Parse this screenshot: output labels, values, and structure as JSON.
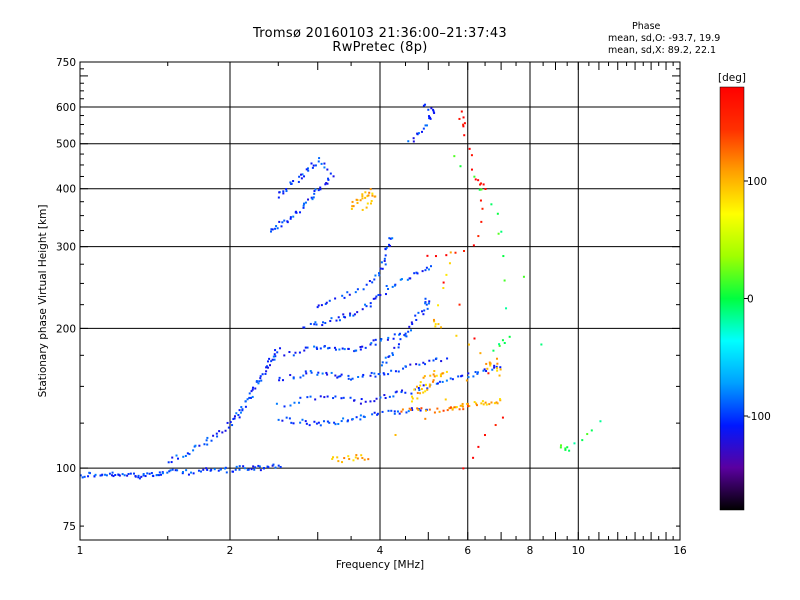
{
  "chart_data": {
    "type": "scatter",
    "title": "Tromsø 20160103 21:36:00–21:37:43",
    "subtitle": "RwPretec (8p)",
    "xlabel": "Frequency [MHz]",
    "ylabel": "Stationary phase Virtual Height [km]",
    "x_scale": "log",
    "y_scale": "log",
    "xlim": [
      1,
      16
    ],
    "ylim": [
      70,
      750
    ],
    "x_ticks": [
      1,
      2,
      4,
      6,
      8,
      10,
      16
    ],
    "y_ticks": [
      75,
      100,
      200,
      300,
      400,
      500,
      600,
      750
    ],
    "grid": true,
    "stats": {
      "title": "Phase",
      "o_line": "mean, sd,O:  -93.7, 19.9",
      "x_line": "mean, sd,X:  89.2, 22.1"
    },
    "colorbar": {
      "label": "[deg]",
      "range": [
        -180,
        180
      ],
      "ticks": [
        100,
        0,
        -100
      ],
      "colors": [
        "#000000",
        "#5a00a0",
        "#0018ff",
        "#00a0ff",
        "#00ffff",
        "#00ff40",
        "#a0ff00",
        "#ffff00",
        "#ffa000",
        "#ff3000",
        "#ff0000"
      ]
    },
    "series": [
      {
        "phase": -100,
        "points": [
          [
            1.0,
            96
          ],
          [
            1.05,
            97
          ],
          [
            1.1,
            96
          ],
          [
            1.15,
            97
          ],
          [
            1.2,
            96
          ],
          [
            1.25,
            97
          ],
          [
            1.3,
            96
          ],
          [
            1.35,
            97
          ],
          [
            1.4,
            97
          ],
          [
            1.45,
            97
          ],
          [
            1.5,
            98
          ],
          [
            1.6,
            98
          ],
          [
            1.7,
            98
          ],
          [
            1.8,
            99
          ],
          [
            1.9,
            99
          ],
          [
            2.0,
            99
          ],
          [
            2.1,
            100
          ],
          [
            2.2,
            100
          ],
          [
            2.3,
            100
          ],
          [
            2.4,
            101
          ],
          [
            2.5,
            101
          ]
        ]
      },
      {
        "phase": -100,
        "points": [
          [
            1.5,
            103
          ],
          [
            1.6,
            106
          ],
          [
            1.7,
            110
          ],
          [
            1.8,
            114
          ],
          [
            1.9,
            118
          ],
          [
            2.0,
            124
          ],
          [
            2.05,
            128
          ],
          [
            2.1,
            132
          ],
          [
            2.15,
            138
          ],
          [
            2.2,
            144
          ],
          [
            2.25,
            150
          ],
          [
            2.3,
            156
          ],
          [
            2.35,
            162
          ],
          [
            2.4,
            168
          ],
          [
            2.45,
            174
          ],
          [
            2.5,
            180
          ]
        ]
      },
      {
        "phase": -100,
        "points": [
          [
            2.5,
            128
          ],
          [
            2.7,
            126
          ],
          [
            2.9,
            125
          ],
          [
            3.1,
            125
          ],
          [
            3.3,
            126
          ],
          [
            3.5,
            128
          ],
          [
            3.7,
            129
          ],
          [
            4.0,
            131
          ],
          [
            4.3,
            132
          ],
          [
            4.6,
            133
          ],
          [
            5.0,
            134
          ]
        ]
      },
      {
        "phase": -100,
        "points": [
          [
            2.5,
            136
          ],
          [
            2.8,
            140
          ],
          [
            3.1,
            143
          ],
          [
            3.4,
            141
          ],
          [
            3.7,
            139
          ],
          [
            4.0,
            142
          ],
          [
            4.3,
            144
          ],
          [
            4.6,
            146
          ],
          [
            5.0,
            150
          ],
          [
            5.4,
            154
          ],
          [
            5.8,
            157
          ],
          [
            6.2,
            160
          ],
          [
            6.6,
            163
          ],
          [
            7.0,
            166
          ]
        ]
      },
      {
        "phase": -100,
        "points": [
          [
            2.5,
            155
          ],
          [
            2.7,
            158
          ],
          [
            2.9,
            161
          ],
          [
            3.1,
            160
          ],
          [
            3.3,
            158
          ],
          [
            3.5,
            156
          ],
          [
            3.8,
            158
          ],
          [
            4.0,
            160
          ],
          [
            4.3,
            162
          ],
          [
            4.6,
            166
          ],
          [
            5.0,
            170
          ],
          [
            5.4,
            172
          ]
        ]
      },
      {
        "phase": -100,
        "points": [
          [
            2.6,
            175
          ],
          [
            2.8,
            180
          ],
          [
            3.0,
            183
          ],
          [
            3.2,
            182
          ],
          [
            3.4,
            180
          ],
          [
            3.6,
            181
          ],
          [
            3.8,
            184
          ],
          [
            4.0,
            188
          ],
          [
            4.3,
            192
          ],
          [
            4.6,
            196
          ]
        ]
      },
      {
        "phase": -100,
        "points": [
          [
            2.8,
            200
          ],
          [
            3.0,
            205
          ],
          [
            3.2,
            208
          ],
          [
            3.4,
            212
          ],
          [
            3.6,
            216
          ],
          [
            3.8,
            224
          ],
          [
            4.0,
            236
          ],
          [
            4.2,
            246
          ],
          [
            4.5,
            256
          ],
          [
            4.8,
            264
          ],
          [
            5.1,
            270
          ]
        ]
      },
      {
        "phase": -100,
        "points": [
          [
            3.0,
            225
          ],
          [
            3.2,
            230
          ],
          [
            3.5,
            238
          ],
          [
            3.8,
            250
          ],
          [
            4.0,
            265
          ],
          [
            4.1,
            282
          ],
          [
            4.15,
            300
          ],
          [
            4.2,
            316
          ]
        ]
      },
      {
        "phase": -100,
        "points": [
          [
            2.4,
            325
          ],
          [
            2.5,
            332
          ],
          [
            2.6,
            340
          ],
          [
            2.7,
            352
          ],
          [
            2.8,
            365
          ],
          [
            2.9,
            378
          ],
          [
            3.0,
            395
          ],
          [
            3.1,
            410
          ],
          [
            3.2,
            430
          ],
          [
            3.0,
            460
          ],
          [
            2.9,
            445
          ],
          [
            2.8,
            430
          ],
          [
            2.7,
            415
          ],
          [
            2.6,
            400
          ],
          [
            2.5,
            385
          ]
        ]
      },
      {
        "phase": -100,
        "points": [
          [
            4.6,
            500
          ],
          [
            4.8,
            530
          ],
          [
            5.0,
            560
          ],
          [
            5.1,
            590
          ],
          [
            4.9,
            600
          ]
        ]
      },
      {
        "phase": -100,
        "points": [
          [
            4.0,
            165
          ],
          [
            4.2,
            175
          ],
          [
            4.4,
            185
          ],
          [
            4.6,
            200
          ],
          [
            4.8,
            215
          ],
          [
            5.0,
            225
          ],
          [
            4.9,
            230
          ]
        ]
      },
      {
        "phase": 100,
        "points": [
          [
            3.5,
            365
          ],
          [
            3.6,
            375
          ],
          [
            3.7,
            385
          ],
          [
            3.8,
            395
          ],
          [
            3.9,
            380
          ],
          [
            3.7,
            360
          ]
        ]
      },
      {
        "phase": 100,
        "points": [
          [
            4.6,
            140
          ],
          [
            4.8,
            145
          ],
          [
            5.0,
            150
          ],
          [
            5.2,
            156
          ],
          [
            5.4,
            162
          ],
          [
            4.9,
            158
          ],
          [
            4.7,
            148
          ]
        ]
      },
      {
        "phase": 100,
        "points": [
          [
            5.5,
            133
          ],
          [
            5.8,
            135
          ],
          [
            6.1,
            137
          ],
          [
            6.4,
            138
          ],
          [
            6.7,
            139
          ],
          [
            7.0,
            140
          ]
        ]
      },
      {
        "phase": 120,
        "points": [
          [
            4.4,
            132
          ],
          [
            4.8,
            134
          ],
          [
            5.2,
            133
          ],
          [
            5.6,
            135
          ],
          [
            6.0,
            136
          ]
        ]
      },
      {
        "phase": 100,
        "points": [
          [
            3.2,
            105
          ],
          [
            3.4,
            104
          ],
          [
            3.6,
            106
          ],
          [
            3.8,
            105
          ],
          [
            6.5,
            165
          ],
          [
            6.8,
            170
          ],
          [
            7.0,
            160
          ],
          [
            5.3,
            200
          ],
          [
            5.1,
            210
          ],
          [
            5.6,
            290
          ]
        ]
      },
      {
        "phase": 170,
        "points": [
          [
            5.8,
            580
          ],
          [
            5.9,
            540
          ],
          [
            6.2,
            420
          ],
          [
            6.5,
            400
          ],
          [
            6.2,
            300
          ],
          [
            5.0,
            285
          ],
          [
            7.0,
            130
          ],
          [
            5.9,
            100
          ]
        ]
      },
      {
        "phase": 0,
        "points": [
          [
            6.8,
            180
          ],
          [
            7.2,
            190
          ],
          [
            6.9,
            350
          ],
          [
            5.6,
            470
          ],
          [
            9.2,
            112
          ],
          [
            9.5,
            110
          ],
          [
            11.0,
            125
          ]
        ]
      }
    ]
  }
}
